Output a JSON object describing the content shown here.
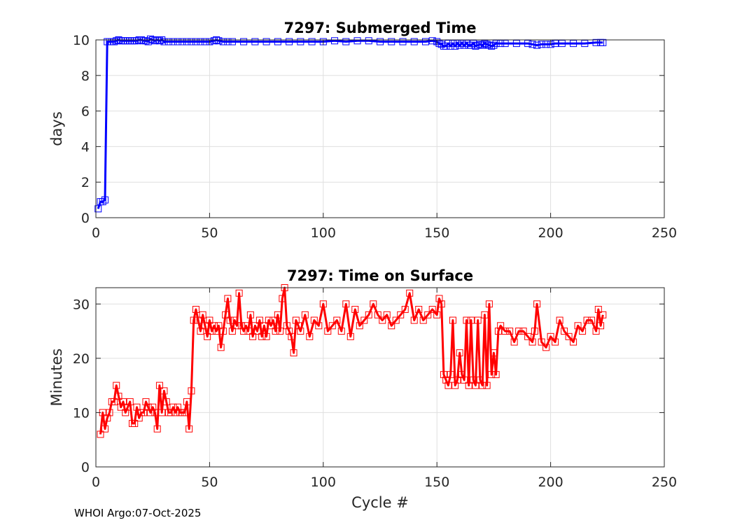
{
  "footer": "WHOI Argo:07-Oct-2025",
  "chart_data": [
    {
      "type": "line",
      "title": "7297: Submerged Time",
      "xlabel": "",
      "ylabel": "days",
      "xlim": [
        0,
        250
      ],
      "ylim": [
        0,
        10
      ],
      "xticks": [
        0,
        50,
        100,
        150,
        200,
        250
      ],
      "yticks": [
        0,
        2,
        4,
        6,
        8,
        10
      ],
      "grid": true,
      "marker": "square",
      "series": [
        {
          "color": "#0000ff",
          "x": [
            1,
            2,
            3,
            4,
            5,
            6,
            7,
            8,
            9,
            10,
            11,
            12,
            13,
            14,
            15,
            16,
            17,
            18,
            19,
            20,
            21,
            22,
            23,
            24,
            25,
            26,
            27,
            28,
            29,
            30,
            32,
            34,
            36,
            38,
            40,
            42,
            44,
            46,
            48,
            50,
            52,
            53,
            54,
            56,
            58,
            60,
            65,
            70,
            75,
            80,
            85,
            90,
            95,
            100,
            105,
            110,
            115,
            120,
            125,
            130,
            135,
            140,
            145,
            148,
            150,
            151,
            152,
            153,
            154,
            155,
            156,
            157,
            158,
            159,
            160,
            161,
            162,
            163,
            164,
            165,
            166,
            167,
            168,
            169,
            170,
            171,
            172,
            173,
            174,
            175,
            176,
            178,
            180,
            185,
            190,
            192,
            194,
            196,
            198,
            200,
            202,
            205,
            210,
            215,
            220,
            222,
            223
          ],
          "values": [
            0.5,
            0.9,
            0.9,
            1.0,
            9.9,
            9.9,
            9.9,
            9.9,
            9.95,
            10.0,
            9.95,
            9.95,
            9.95,
            9.95,
            9.95,
            9.95,
            9.95,
            9.95,
            10.0,
            10.0,
            9.95,
            9.95,
            9.9,
            10.05,
            10.0,
            9.95,
            10.0,
            9.95,
            10.0,
            9.9,
            9.9,
            9.9,
            9.9,
            9.9,
            9.9,
            9.9,
            9.9,
            9.9,
            9.9,
            9.9,
            9.95,
            10.0,
            9.95,
            9.9,
            9.9,
            9.9,
            9.9,
            9.9,
            9.9,
            9.9,
            9.9,
            9.9,
            9.9,
            9.9,
            9.95,
            9.9,
            9.95,
            9.95,
            9.9,
            9.9,
            9.9,
            9.9,
            9.9,
            9.95,
            9.9,
            9.8,
            9.75,
            9.65,
            9.65,
            9.8,
            9.65,
            9.8,
            9.65,
            9.8,
            9.7,
            9.8,
            9.7,
            9.8,
            9.7,
            9.7,
            9.8,
            9.65,
            9.7,
            9.75,
            9.7,
            9.8,
            9.75,
            9.7,
            9.65,
            9.7,
            9.8,
            9.8,
            9.8,
            9.8,
            9.8,
            9.75,
            9.7,
            9.75,
            9.75,
            9.75,
            9.8,
            9.8,
            9.8,
            9.8,
            9.85,
            9.85,
            9.85
          ]
        }
      ]
    },
    {
      "type": "line",
      "title": "7297: Time on Surface",
      "xlabel": "Cycle #",
      "ylabel": "Minutes",
      "xlim": [
        0,
        250
      ],
      "ylim": [
        0,
        33
      ],
      "xticks": [
        0,
        50,
        100,
        150,
        200,
        250
      ],
      "yticks": [
        0,
        10,
        20,
        30
      ],
      "grid": true,
      "marker": "square",
      "series": [
        {
          "color": "#ff0000",
          "x": [
            2,
            3,
            4,
            5,
            6,
            7,
            8,
            9,
            10,
            11,
            12,
            13,
            14,
            15,
            16,
            17,
            18,
            19,
            20,
            21,
            22,
            23,
            24,
            25,
            26,
            27,
            28,
            29,
            30,
            31,
            32,
            33,
            34,
            35,
            36,
            37,
            38,
            39,
            40,
            41,
            42,
            43,
            44,
            45,
            46,
            47,
            48,
            49,
            50,
            51,
            52,
            53,
            54,
            55,
            56,
            57,
            58,
            59,
            60,
            61,
            62,
            63,
            64,
            65,
            66,
            67,
            68,
            69,
            70,
            71,
            72,
            73,
            74,
            75,
            76,
            77,
            78,
            79,
            80,
            81,
            82,
            83,
            84,
            85,
            86,
            87,
            88,
            89,
            90,
            92,
            94,
            96,
            98,
            100,
            102,
            104,
            106,
            108,
            110,
            112,
            114,
            116,
            118,
            120,
            122,
            124,
            126,
            128,
            130,
            132,
            134,
            136,
            138,
            140,
            142,
            144,
            146,
            148,
            150,
            151,
            152,
            153,
            154,
            155,
            156,
            157,
            158,
            159,
            160,
            161,
            162,
            163,
            164,
            165,
            166,
            167,
            168,
            169,
            170,
            171,
            172,
            173,
            174,
            175,
            176,
            177,
            178,
            180,
            182,
            184,
            186,
            188,
            190,
            192,
            193,
            194,
            196,
            198,
            200,
            202,
            204,
            206,
            208,
            210,
            212,
            214,
            216,
            218,
            220,
            221,
            222,
            223
          ],
          "values": [
            6,
            10,
            7,
            9,
            10,
            12,
            12,
            15,
            13,
            11,
            12,
            10,
            11,
            12,
            8,
            8,
            11,
            9,
            10,
            10,
            12,
            11,
            10,
            11,
            10,
            7,
            15,
            10,
            14,
            12,
            10,
            10,
            11,
            10,
            11,
            10,
            10,
            10,
            12,
            7,
            14,
            27,
            29,
            27,
            25,
            28,
            26,
            24,
            27,
            25,
            26,
            25,
            26,
            22,
            25,
            28,
            31,
            27,
            25,
            27,
            26,
            32,
            26,
            25,
            26,
            25,
            28,
            24,
            26,
            25,
            27,
            24,
            26,
            24,
            27,
            26,
            27,
            25,
            28,
            25,
            31,
            33,
            26,
            25,
            24,
            21,
            27,
            26,
            25,
            28,
            24,
            27,
            26,
            30,
            25,
            26,
            27,
            25,
            30,
            24,
            29,
            26,
            27,
            28,
            30,
            28,
            27,
            28,
            26,
            27,
            28,
            29,
            32,
            27,
            29,
            27,
            28,
            29,
            28,
            31,
            30,
            17,
            16,
            15,
            17,
            27,
            15,
            16,
            21,
            17,
            16,
            27,
            15,
            27,
            16,
            15,
            27,
            16,
            15,
            28,
            15,
            30,
            17,
            21,
            17,
            25,
            26,
            25,
            25,
            23,
            25,
            25,
            24,
            23,
            25,
            30,
            23,
            22,
            24,
            23,
            27,
            25,
            24,
            23,
            26,
            25,
            27,
            27,
            25,
            29,
            26,
            28
          ]
        }
      ]
    }
  ]
}
